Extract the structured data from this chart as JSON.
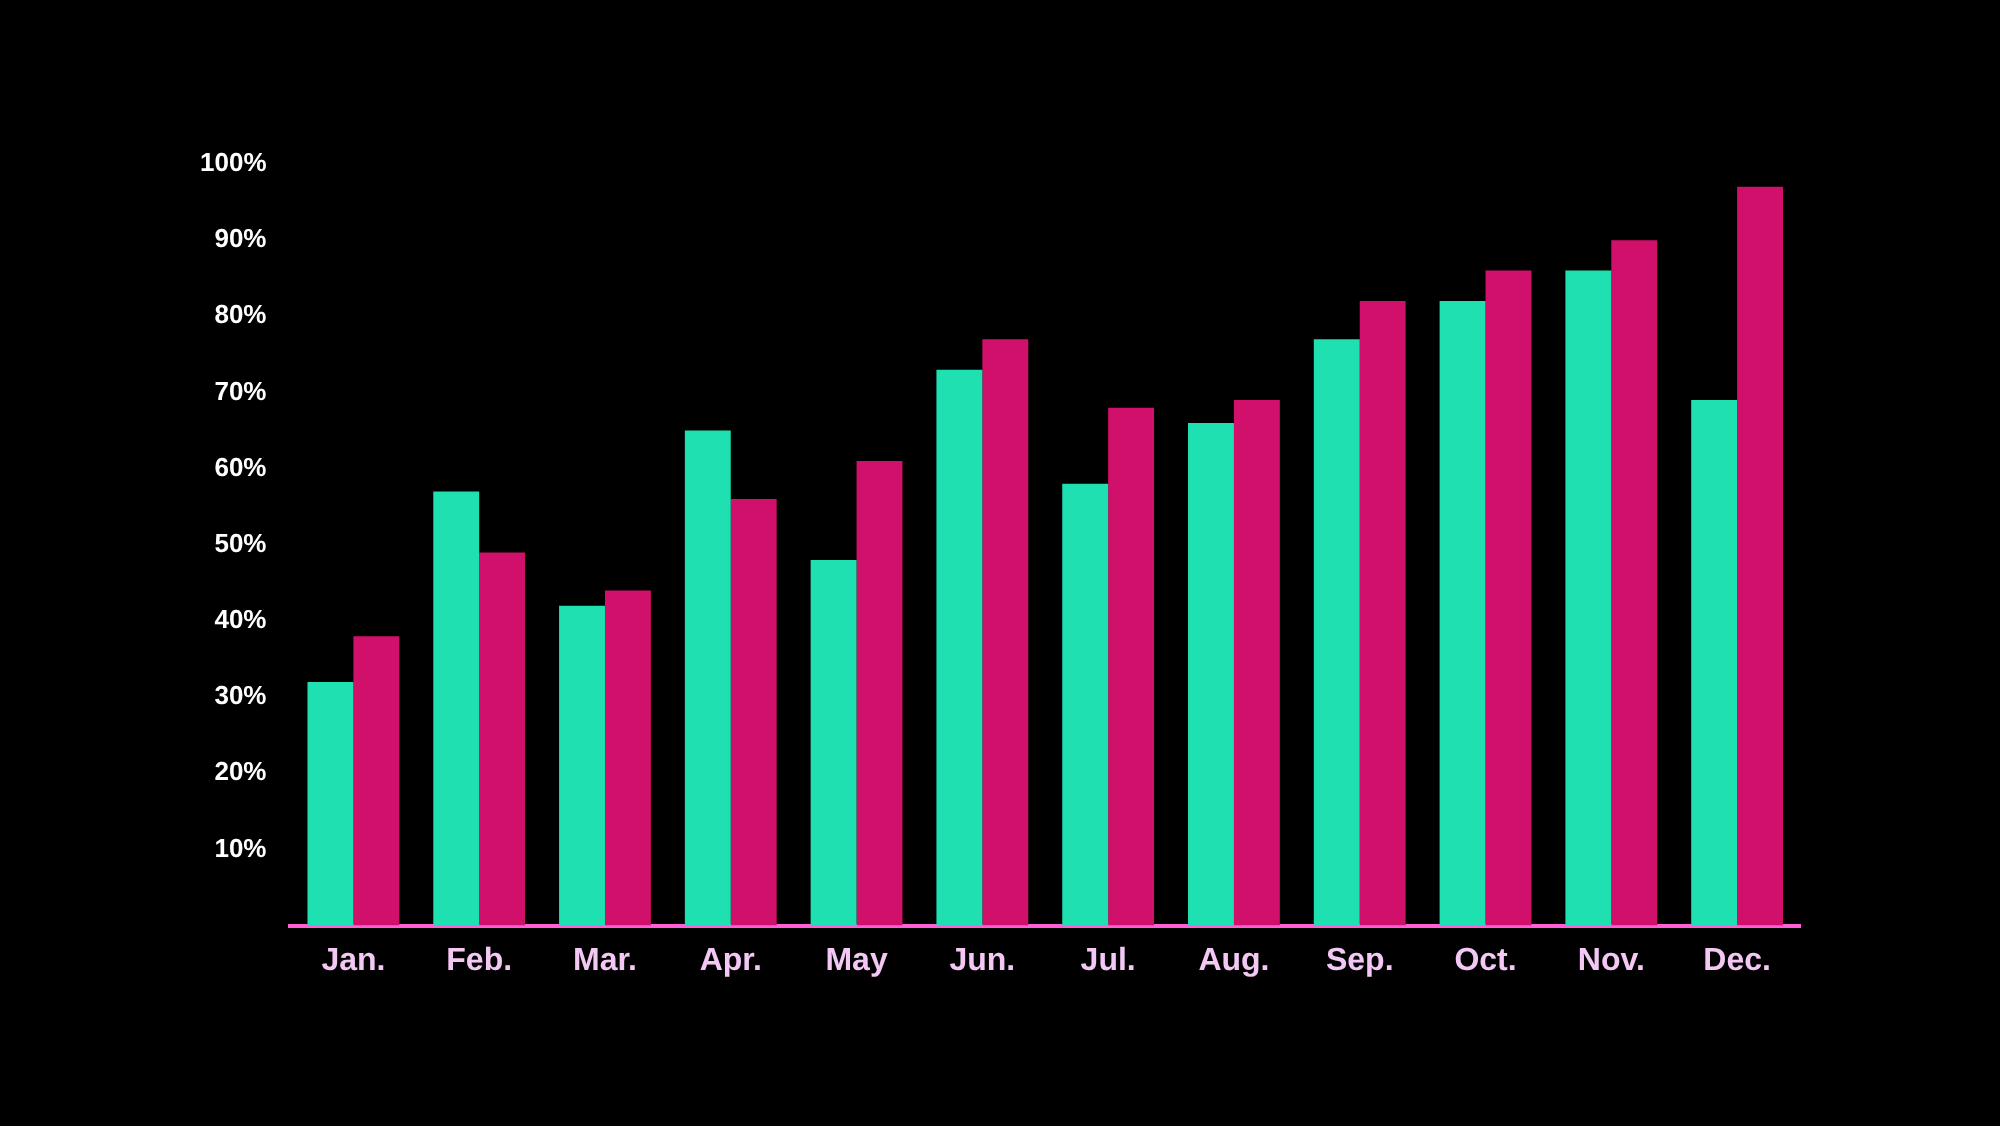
{
  "chart_data": {
    "type": "bar",
    "categories": [
      "Jan.",
      "Feb.",
      "Mar.",
      "Apr.",
      "May",
      "Jun.",
      "Jul.",
      "Aug.",
      "Sep.",
      "Oct.",
      "Nov.",
      "Dec."
    ],
    "series": [
      {
        "color": "#1ee0b0",
        "values": [
          32,
          57,
          42,
          65,
          48,
          73,
          58,
          66,
          77,
          82,
          86,
          69
        ]
      },
      {
        "color": "#d0106a",
        "values": [
          38,
          49,
          44,
          56,
          61,
          77,
          68,
          69,
          82,
          86,
          90,
          97
        ]
      }
    ],
    "ylim": [
      0,
      100
    ],
    "yticks": [
      {
        "value": 10,
        "label": "10%"
      },
      {
        "value": 20,
        "label": "20%"
      },
      {
        "value": 30,
        "label": "30%"
      },
      {
        "value": 40,
        "label": "40%"
      },
      {
        "value": 50,
        "label": "50%"
      },
      {
        "value": 60,
        "label": "60%"
      },
      {
        "value": 70,
        "label": "70%"
      },
      {
        "value": 80,
        "label": "80%"
      },
      {
        "value": 90,
        "label": "90%"
      },
      {
        "value": 100,
        "label": "100%"
      }
    ]
  }
}
